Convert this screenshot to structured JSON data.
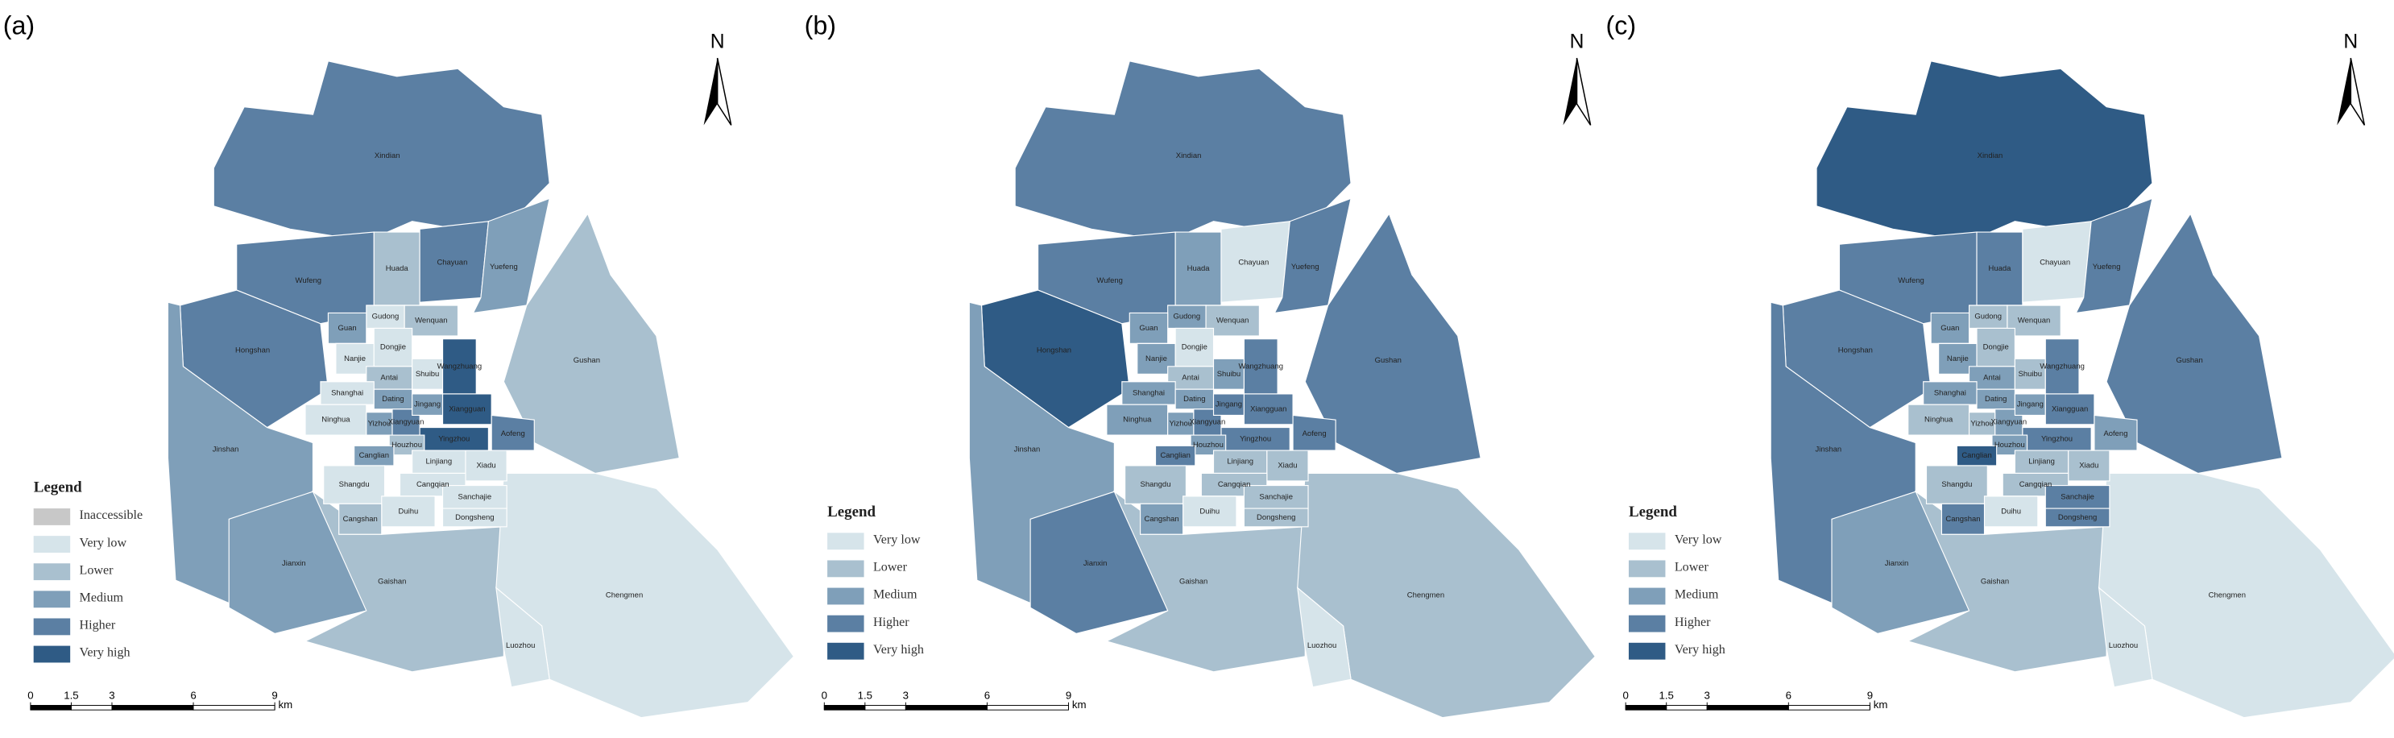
{
  "districts": [
    "Xindian",
    "Wufeng",
    "Huada",
    "Chayuan",
    "Yuefeng",
    "Gushan",
    "Hongshan",
    "Jinshan",
    "Jianxin",
    "Gaishan",
    "Chengmen",
    "Luozhou",
    "Gudong",
    "Wenquan",
    "Guan",
    "Nanjie",
    "Dongjie",
    "Antai",
    "Shuibu",
    "Wangzhuang",
    "Shanghai",
    "Dating",
    "Ninghua",
    "Yizhou",
    "Xiangyuan",
    "Jingang",
    "Xiangguan",
    "Yingzhou",
    "Houzhou",
    "Aofeng",
    "Canglian",
    "Linjiang",
    "Xiadu",
    "Shangdu",
    "Cangqian",
    "Duihu",
    "Sanchajie",
    "Dongsheng",
    "Cangshan"
  ],
  "scale_bar": {
    "ticks": [
      0,
      1.5,
      3,
      6,
      9
    ],
    "unit": "km"
  },
  "panels": [
    {
      "label": "(a)",
      "north": "N",
      "legend": {
        "title": "Legend",
        "items": [
          {
            "label": "Inaccessible",
            "color": "#c8c8c8"
          },
          {
            "label": "Very low",
            "color": "#d6e4ea"
          },
          {
            "label": "Lower",
            "color": "#a9c0cf"
          },
          {
            "label": "Medium",
            "color": "#7f9fb9"
          },
          {
            "label": "Higher",
            "color": "#5b7fa3"
          },
          {
            "label": "Very high",
            "color": "#2f5b85"
          }
        ]
      },
      "levels": [
        4,
        4,
        2,
        4,
        3,
        2,
        4,
        3,
        3,
        2,
        1,
        1,
        1,
        2,
        3,
        1,
        1,
        2,
        1,
        5,
        1,
        3,
        1,
        3,
        4,
        3,
        5,
        5,
        2,
        4,
        3,
        1,
        1,
        1,
        1,
        1,
        1,
        1,
        2
      ]
    },
    {
      "label": "(b)",
      "north": "N",
      "legend": {
        "title": "Legend",
        "items": [
          {
            "label": "Very low",
            "color": "#d6e4ea"
          },
          {
            "label": "Lower",
            "color": "#a9c0cf"
          },
          {
            "label": "Medium",
            "color": "#7f9fb9"
          },
          {
            "label": "Higher",
            "color": "#5b7fa3"
          },
          {
            "label": "Very high",
            "color": "#2f5b85"
          }
        ]
      },
      "levels": [
        3,
        3,
        2,
        0,
        3,
        3,
        4,
        2,
        3,
        1,
        1,
        0,
        2,
        1,
        2,
        2,
        0,
        1,
        2,
        3,
        2,
        2,
        2,
        2,
        3,
        3,
        3,
        3,
        2,
        3,
        3,
        1,
        1,
        1,
        1,
        0,
        1,
        1,
        2
      ]
    },
    {
      "label": "(c)",
      "north": "N",
      "legend": {
        "title": "Legend",
        "items": [
          {
            "label": "Very low",
            "color": "#d6e4ea"
          },
          {
            "label": "Lower",
            "color": "#a9c0cf"
          },
          {
            "label": "Medium",
            "color": "#7f9fb9"
          },
          {
            "label": "Higher",
            "color": "#5b7fa3"
          },
          {
            "label": "Very high",
            "color": "#2f5b85"
          }
        ]
      },
      "levels": [
        4,
        3,
        3,
        0,
        3,
        3,
        3,
        3,
        2,
        1,
        0,
        0,
        1,
        1,
        2,
        2,
        1,
        2,
        1,
        3,
        2,
        2,
        1,
        1,
        2,
        2,
        3,
        3,
        2,
        2,
        4,
        1,
        1,
        1,
        1,
        0,
        3,
        3,
        3
      ]
    }
  ]
}
